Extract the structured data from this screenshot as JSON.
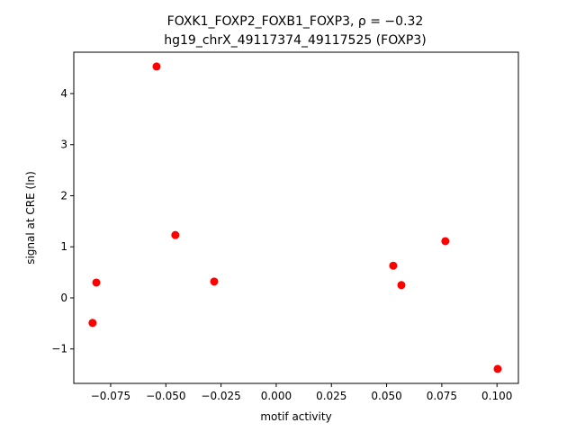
{
  "chart_data": {
    "type": "scatter",
    "title": "FOXK1_FOXP2_FOXB1_FOXP3, ρ = −0.32",
    "subtitle": "hg19_chrX_49117374_49117525 (FOXP3)",
    "x_label": "motif activity",
    "y_label": "signal at CRE (ln)",
    "color": "#ff0000",
    "series": [
      {
        "x": [
          -0.0542,
          -0.0457,
          -0.0815,
          -0.0832,
          -0.0281,
          0.053,
          0.0567,
          0.0766,
          0.1003
        ],
        "values": [
          4.53,
          1.23,
          0.3,
          -0.49,
          0.32,
          0.63,
          0.25,
          1.11,
          -1.39
        ]
      }
    ],
    "xlim": [
      -0.0917,
      0.1097
    ],
    "ylim": [
      -1.674,
      4.81
    ],
    "xticks": [
      {
        "value": -0.075,
        "label": "−0.075"
      },
      {
        "value": -0.05,
        "label": "−0.050"
      },
      {
        "value": -0.025,
        "label": "−0.025"
      },
      {
        "value": 0,
        "label": "0.000"
      },
      {
        "value": 0.025,
        "label": "0.025"
      },
      {
        "value": 0.05,
        "label": "0.050"
      },
      {
        "value": 0.075,
        "label": "0.075"
      },
      {
        "value": 0.1,
        "label": "0.100"
      }
    ],
    "yticks": [
      {
        "value": -1,
        "label": "−1"
      },
      0,
      1,
      2,
      3,
      4
    ]
  }
}
